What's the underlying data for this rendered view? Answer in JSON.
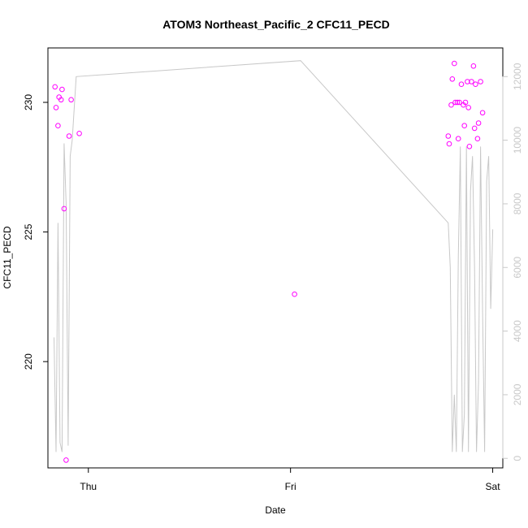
{
  "chart_data": {
    "type": "scatter",
    "title": "ATOM3 Northeast_Pacific_2 CFC11_PECD",
    "xlabel": "Date",
    "ylabel": "CFC11_PECD",
    "xlim": [
      -0.2,
      2.05
    ],
    "ylim": [
      215.9,
      232.1
    ],
    "y2lim": [
      -300,
      12900
    ],
    "x_ticks": [
      {
        "value": 0,
        "label": "Thu"
      },
      {
        "value": 1,
        "label": "Fri"
      },
      {
        "value": 2,
        "label": "Sat"
      }
    ],
    "y_ticks": [
      220,
      225,
      230
    ],
    "y2_ticks": [
      0,
      2000,
      4000,
      6000,
      8000,
      10000,
      12000
    ],
    "colors": {
      "points": "#ff00ff",
      "line": "#c8c8c8"
    },
    "grid": false,
    "series": [
      {
        "kind": "points",
        "axis": "left",
        "x": [
          -0.165,
          -0.16,
          -0.15,
          -0.145,
          -0.135,
          -0.13,
          -0.12,
          -0.11,
          -0.095,
          -0.085,
          -0.045,
          1.02,
          1.78,
          1.785,
          1.795,
          1.8,
          1.81,
          1.815,
          1.825,
          1.83,
          1.835,
          1.845,
          1.855,
          1.86,
          1.865,
          1.875,
          1.88,
          1.885,
          1.895,
          1.905,
          1.91,
          1.915,
          1.925,
          1.93,
          1.94,
          1.95
        ],
        "y": [
          230.6,
          229.8,
          229.1,
          230.2,
          230.1,
          230.5,
          225.9,
          216.2,
          228.7,
          230.1,
          228.8,
          222.6,
          228.7,
          228.4,
          229.9,
          230.9,
          231.5,
          230.0,
          230.0,
          228.6,
          230.0,
          230.7,
          229.9,
          229.1,
          230.0,
          230.8,
          229.8,
          228.3,
          230.8,
          231.4,
          229.0,
          230.7,
          228.6,
          229.2,
          230.8,
          229.6
        ]
      },
      {
        "kind": "line",
        "axis": "right",
        "x": [
          -0.17,
          -0.16,
          -0.15,
          -0.14,
          -0.13,
          -0.12,
          -0.11,
          -0.1,
          -0.09,
          -0.08,
          -0.06,
          1.05,
          1.78,
          1.79,
          1.8,
          1.81,
          1.82,
          1.83,
          1.84,
          1.85,
          1.86,
          1.87,
          1.88,
          1.89,
          1.9,
          1.91,
          1.92,
          1.93,
          1.94,
          1.95,
          1.96,
          1.97,
          1.98,
          1.99,
          2.0
        ],
        "y": [
          3800,
          200,
          7400,
          500,
          200,
          9900,
          8000,
          400,
          9500,
          10000,
          12000,
          12500,
          7400,
          6000,
          200,
          2000,
          200,
          6300,
          9800,
          200,
          1400,
          9800,
          200,
          8400,
          9500,
          6000,
          200,
          2400,
          9800,
          4600,
          200,
          8700,
          9500,
          4700,
          7200
        ]
      }
    ]
  }
}
